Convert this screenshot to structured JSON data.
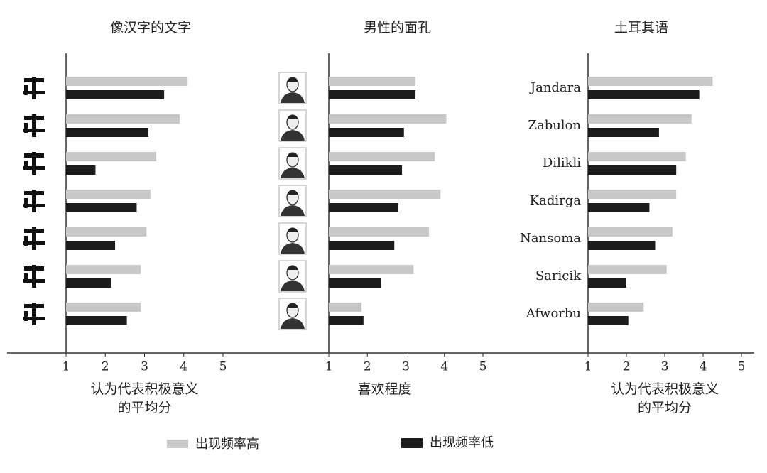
{
  "chart_data": [
    {
      "type": "bar",
      "orientation": "horizontal",
      "title": "像汉字的文字",
      "categories": [
        null,
        null,
        null,
        null,
        null,
        null,
        null
      ],
      "series": [
        {
          "name": "出现频率高",
          "color": "#c8c8c8",
          "values": [
            4.1,
            3.9,
            3.3,
            3.15,
            3.05,
            2.9,
            2.9
          ]
        },
        {
          "name": "出现频率低",
          "color": "#1c1c1c",
          "values": [
            3.5,
            3.1,
            1.75,
            2.8,
            2.25,
            2.15,
            2.55
          ]
        }
      ],
      "xlim": [
        1,
        5
      ],
      "xticks": [
        1,
        2,
        3,
        4,
        5
      ],
      "xlabel": [
        "认为代表积极意义",
        "的平均分"
      ]
    },
    {
      "type": "bar",
      "orientation": "horizontal",
      "title": "男性的面孔",
      "categories": [
        null,
        null,
        null,
        null,
        null,
        null,
        null
      ],
      "series": [
        {
          "name": "出现频率高",
          "color": "#c8c8c8",
          "values": [
            3.25,
            4.05,
            3.75,
            3.9,
            3.6,
            3.2,
            1.85
          ]
        },
        {
          "name": "出现频率低",
          "color": "#1c1c1c",
          "values": [
            3.25,
            2.95,
            2.9,
            2.8,
            2.7,
            2.35,
            1.9
          ]
        }
      ],
      "xlim": [
        1,
        5
      ],
      "xticks": [
        1,
        2,
        3,
        4,
        5
      ],
      "xlabel": [
        "喜欢程度"
      ]
    },
    {
      "type": "bar",
      "orientation": "horizontal",
      "title": "土耳其语",
      "categories": [
        "Jandara",
        "Zabulon",
        "Dilikli",
        "Kadirga",
        "Nansoma",
        "Saricik",
        "Afworbu"
      ],
      "series": [
        {
          "name": "出现频率高",
          "color": "#c8c8c8",
          "values": [
            4.25,
            3.7,
            3.55,
            3.3,
            3.2,
            3.05,
            2.45
          ]
        },
        {
          "name": "出现频率低",
          "color": "#1c1c1c",
          "values": [
            3.9,
            2.85,
            3.3,
            2.6,
            2.75,
            2.0,
            2.05
          ]
        }
      ],
      "xlim": [
        1,
        5
      ],
      "xticks": [
        1,
        2,
        3,
        4,
        5
      ],
      "xlabel": [
        "认为代表积极意义",
        "的平均分"
      ]
    }
  ]
}
